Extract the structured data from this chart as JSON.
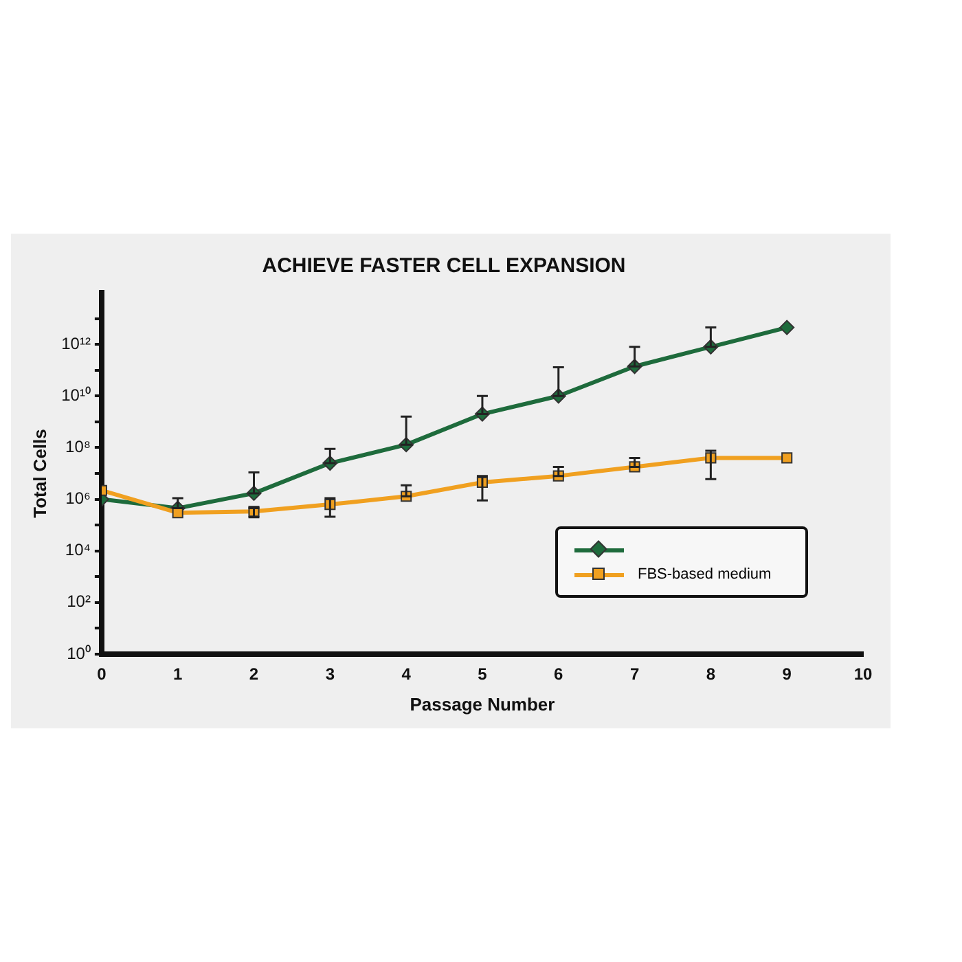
{
  "chart_data": {
    "type": "line",
    "title": "ACHIEVE FASTER CELL EXPANSION",
    "xlabel": "Passage Number",
    "ylabel": "Total Cells",
    "x": [
      0,
      1,
      2,
      3,
      4,
      5,
      6,
      7,
      8,
      9
    ],
    "xlim": [
      0,
      10
    ],
    "xticks": [
      0,
      1,
      2,
      3,
      4,
      5,
      6,
      7,
      8,
      9,
      10
    ],
    "ylim": [
      1,
      100000000000000.0
    ],
    "log": true,
    "yticks": [
      {
        "value": 1,
        "label": "10⁰"
      },
      {
        "value": 10.0,
        "label": null
      },
      {
        "value": 100.0,
        "label": "10²"
      },
      {
        "value": 1000.0,
        "label": null
      },
      {
        "value": 10000.0,
        "label": "10⁴"
      },
      {
        "value": 100000.0,
        "label": null
      },
      {
        "value": 1000000.0,
        "label": "10⁶"
      },
      {
        "value": 10000000.0,
        "label": null
      },
      {
        "value": 100000000.0,
        "label": "10⁸"
      },
      {
        "value": 1000000000.0,
        "label": null
      },
      {
        "value": 10000000000.0,
        "label": "10¹⁰"
      },
      {
        "value": 100000000000.0,
        "label": null
      },
      {
        "value": 1000000000000.0,
        "label": "10¹²"
      },
      {
        "value": 10000000000000.0,
        "label": null
      }
    ],
    "grid": false,
    "legend": "bottom right",
    "series": [
      {
        "color": "#1e6b3c",
        "marker": "diamond",
        "values": [
          1000000.0,
          450000.0,
          1700000.0,
          25000000.0,
          130000000.0,
          2000000000.0,
          10000000000.0,
          140000000000.0,
          800000000000.0,
          4500000000000.0
        ],
        "errors": [
          null,
          [
            450000.0,
            1100000.0
          ],
          [
            1700000.0,
            11000000.0
          ],
          [
            25000000.0,
            90000000.0
          ],
          [
            130000000.0,
            1600000000.0
          ],
          [
            2000000000.0,
            10000000000.0
          ],
          [
            10000000000.0,
            130000000000.0
          ],
          [
            140000000000.0,
            800000000000.0
          ],
          [
            800000000000.0,
            4500000000000.0
          ],
          null
        ]
      },
      {
        "name": "FBS-based medium",
        "color": "#f0a020",
        "marker": "square",
        "values": [
          2200000.0,
          300000.0,
          340000.0,
          630000.0,
          1300000.0,
          4500000.0,
          8000000.0,
          18000000.0,
          40000000.0,
          40000000.0
        ],
        "errors": [
          null,
          null,
          [
            200000.0,
            450000.0
          ],
          [
            210000.0,
            1100000.0
          ],
          [
            1300000.0,
            3500000.0
          ],
          [
            900000.0,
            8000000.0
          ],
          [
            8000000.0,
            18000000.0
          ],
          [
            18000000.0,
            40000000.0
          ],
          [
            6000000.0,
            76000000.0
          ],
          null
        ]
      }
    ]
  }
}
